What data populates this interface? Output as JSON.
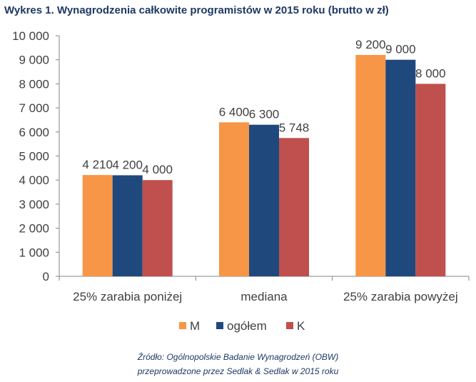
{
  "chart_data": {
    "type": "bar",
    "title": "Wykres 1. Wynagrodzenia całkowite programistów w 2015 roku (brutto w zł)",
    "categories": [
      "25% zarabia poniżej",
      "mediana",
      "25% zarabia powyżej"
    ],
    "series": [
      {
        "name": "M",
        "color": "#f79646",
        "values": [
          4210,
          6400,
          9200
        ],
        "labels": [
          "4 210",
          "6 400",
          "9 200"
        ]
      },
      {
        "name": "ogółem",
        "color": "#1f497d",
        "values": [
          4200,
          6300,
          9000
        ],
        "labels": [
          "4 200",
          "6 300",
          "9 000"
        ]
      },
      {
        "name": "K",
        "color": "#c0504d",
        "values": [
          4000,
          5748,
          8000
        ],
        "labels": [
          "4 000",
          "5 748",
          "8 000"
        ]
      }
    ],
    "ylim": [
      0,
      10000
    ],
    "yticks": [
      0,
      1000,
      2000,
      3000,
      4000,
      5000,
      6000,
      7000,
      8000,
      9000,
      10000
    ],
    "ytick_labels": [
      "0",
      "1 000",
      "2 000",
      "3 000",
      "4 000",
      "5 000",
      "6 000",
      "7 000",
      "8 000",
      "9 000",
      "10 000"
    ],
    "grid": false,
    "legend": "bottom"
  },
  "source": {
    "line1": "Źródło: Ogólnopolskie Badanie Wynagrodzeń (OBW)",
    "line2": "przeprowadzone przez Sedlak & Sedlak w 2015 roku"
  }
}
